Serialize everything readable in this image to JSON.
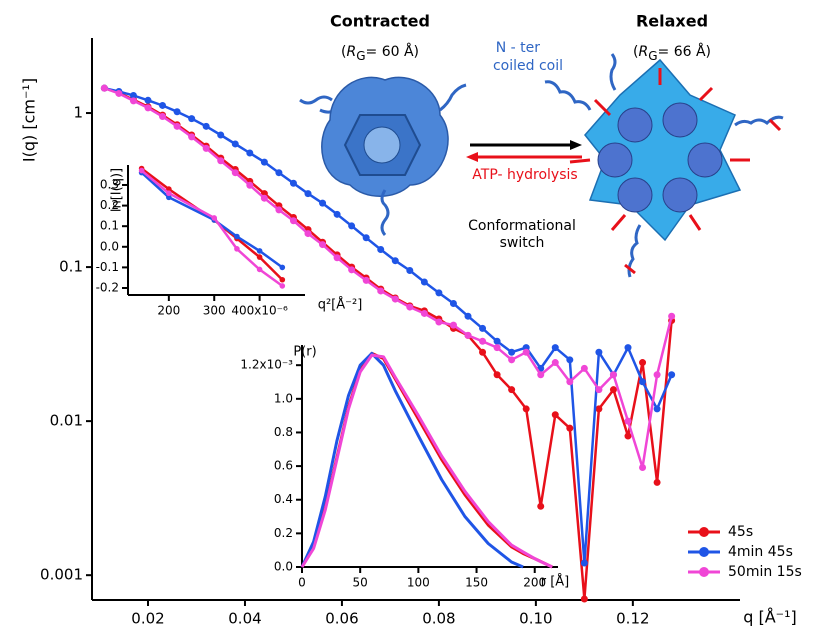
{
  "chart_data": [
    {
      "type": "line",
      "ylog": true,
      "y_label": "I(q) [cm⁻¹]",
      "x_label": "q [Å⁻¹]",
      "legend": "lower right",
      "xlim": [
        0.00845,
        0.1421
      ],
      "ylim": [
        0.00069,
        3.07
      ],
      "xticks": [
        0.02,
        0.04,
        0.06,
        0.08,
        {
          "value": 0.1,
          "label": "0.10"
        },
        0.12
      ],
      "yticks": [
        0.001,
        0.01,
        0.1,
        1
      ],
      "x": [
        0.011,
        0.014,
        0.017,
        0.02,
        0.023,
        0.026,
        0.029,
        0.032,
        0.035,
        0.038,
        0.041,
        0.044,
        0.047,
        0.05,
        0.053,
        0.056,
        0.059,
        0.062,
        0.065,
        0.068,
        0.071,
        0.074,
        0.077,
        0.08,
        0.083,
        0.086,
        0.089,
        0.092,
        0.095,
        0.098,
        0.101,
        0.104,
        0.107,
        0.11,
        0.113,
        0.116,
        0.119,
        0.122,
        0.125,
        0.128
      ],
      "series": [
        {
          "name": "45s",
          "color": "#e8101a",
          "values": [
            1.45,
            1.35,
            1.22,
            1.1,
            0.97,
            0.84,
            0.72,
            0.61,
            0.51,
            0.43,
            0.36,
            0.3,
            0.25,
            0.21,
            0.175,
            0.145,
            0.12,
            0.1,
            0.085,
            0.072,
            0.063,
            0.056,
            0.052,
            0.046,
            0.04,
            0.036,
            0.028,
            0.02,
            0.016,
            0.012,
            0.0028,
            0.011,
            0.009,
            0.0007,
            0.012,
            0.016,
            0.008,
            0.024,
            0.004,
            0.045
          ]
        },
        {
          "name": "4min 45s",
          "color": "#1f55e6",
          "values": [
            1.45,
            1.38,
            1.3,
            1.21,
            1.12,
            1.02,
            0.92,
            0.82,
            0.72,
            0.63,
            0.55,
            0.48,
            0.41,
            0.35,
            0.3,
            0.26,
            0.22,
            0.185,
            0.155,
            0.13,
            0.11,
            0.095,
            0.08,
            0.068,
            0.058,
            0.048,
            0.04,
            0.033,
            0.028,
            0.03,
            0.022,
            0.03,
            0.025,
            0.0012,
            0.028,
            0.02,
            0.03,
            0.018,
            0.012,
            0.02
          ]
        },
        {
          "name": "50min 15s",
          "color": "#f046d6",
          "values": [
            1.45,
            1.34,
            1.2,
            1.08,
            0.95,
            0.82,
            0.7,
            0.59,
            0.49,
            0.41,
            0.34,
            0.28,
            0.235,
            0.2,
            0.165,
            0.14,
            0.115,
            0.096,
            0.082,
            0.07,
            0.062,
            0.055,
            0.05,
            0.044,
            0.042,
            0.036,
            0.033,
            0.03,
            0.025,
            0.028,
            0.02,
            0.024,
            0.018,
            0.022,
            0.016,
            0.02,
            0.01,
            0.005,
            0.02,
            0.048
          ]
        }
      ]
    },
    {
      "type": "line",
      "markers": true,
      "y_label": "ln[I(q)]",
      "x_label": "q²[Å⁻²]",
      "xlim": [
        110,
        500
      ],
      "ylim": [
        -0.234,
        0.397
      ],
      "xticks": [
        200,
        300,
        {
          "value": 400,
          "label": "400x10⁻⁶"
        }
      ],
      "yticks": [
        0.3,
        0.2,
        0.1,
        {
          "value": 0,
          "label": "0.0"
        },
        -0.1,
        -0.2
      ],
      "x": [
        140,
        200,
        300,
        350,
        400,
        450
      ],
      "series": [
        {
          "color": "#e8101a",
          "values": [
            0.38,
            0.28,
            0.13,
            0.04,
            -0.05,
            -0.16
          ]
        },
        {
          "color": "#1f55e6",
          "values": [
            0.36,
            0.24,
            0.13,
            0.05,
            -0.02,
            -0.1
          ]
        },
        {
          "color": "#f046d6",
          "values": [
            0.37,
            0.26,
            0.14,
            -0.01,
            -0.11,
            -0.19
          ]
        }
      ]
    },
    {
      "type": "line",
      "y_label": "P(r)",
      "x_label": "r [Å]",
      "xlim": [
        0,
        220
      ],
      "ylim": [
        0,
        1.32
      ],
      "xticks": [
        0,
        50,
        100,
        150,
        200
      ],
      "yticks": [
        {
          "value": 0,
          "label": "0.0"
        },
        0.2,
        0.4,
        0.6,
        0.8,
        {
          "value": 1,
          "label": "1.0"
        },
        {
          "value": 1.2,
          "label": "1.2x10⁻³"
        }
      ],
      "x": [
        0,
        10,
        20,
        30,
        40,
        50,
        60,
        70,
        80,
        100,
        120,
        140,
        160,
        180,
        190,
        200,
        215
      ],
      "series": [
        {
          "color": "#e8101a",
          "values": [
            0,
            0.12,
            0.35,
            0.65,
            0.95,
            1.17,
            1.27,
            1.24,
            1.12,
            0.88,
            0.64,
            0.43,
            0.25,
            0.12,
            0.08,
            0.05,
            0
          ]
        },
        {
          "color": "#1f55e6",
          "values": [
            0,
            0.15,
            0.42,
            0.75,
            1.02,
            1.2,
            1.27,
            1.2,
            1.05,
            0.78,
            0.52,
            0.3,
            0.14,
            0.03,
            0,
            null,
            null
          ]
        },
        {
          "color": "#f046d6",
          "values": [
            0,
            0.11,
            0.34,
            0.64,
            0.94,
            1.16,
            1.26,
            1.25,
            1.13,
            0.9,
            0.66,
            0.45,
            0.27,
            0.13,
            0.09,
            0.05,
            0
          ]
        }
      ]
    }
  ],
  "diagram": {
    "contracted": "Contracted",
    "rg_contracted": [
      "(",
      "R",
      "G",
      "= 60 Å)"
    ],
    "relaxed": "Relaxed",
    "rg_relaxed": [
      "(",
      "R",
      "G",
      "= 66 Å)"
    ],
    "nter_line1": "N - ter",
    "nter_line2": "coiled coil",
    "arrow_label": "ATP- hydrolysis",
    "switch_line1": "Conformational",
    "switch_line2": "switch"
  }
}
